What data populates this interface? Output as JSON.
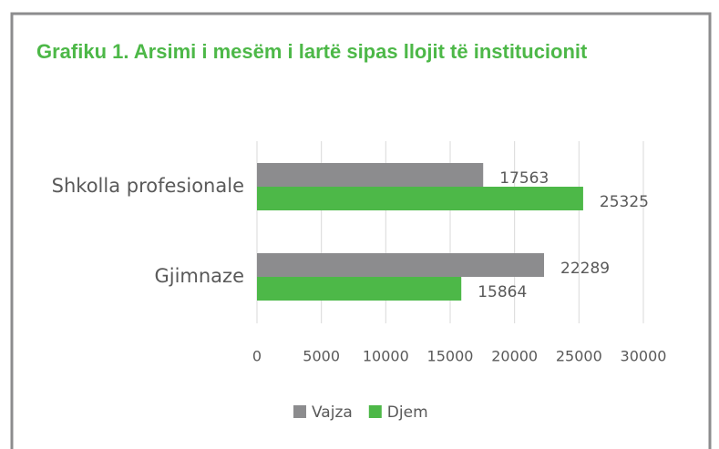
{
  "chart_data": {
    "type": "hbar",
    "title": "Grafiku 1. Arsimi i mesëm i lartë sipas llojit të institucionit",
    "categories": [
      "Shkolla profesionale",
      "Gjimnaze"
    ],
    "series": [
      {
        "name": "Vajza",
        "color": "#8c8c8e",
        "values": [
          17563,
          22289
        ]
      },
      {
        "name": "Djem",
        "color": "#4db848",
        "values": [
          25325,
          15864
        ]
      }
    ],
    "xlim": [
      0,
      30000
    ],
    "xticks": [
      0,
      5000,
      10000,
      15000,
      20000,
      25000,
      30000
    ],
    "grid": true,
    "legend": "bottom"
  }
}
